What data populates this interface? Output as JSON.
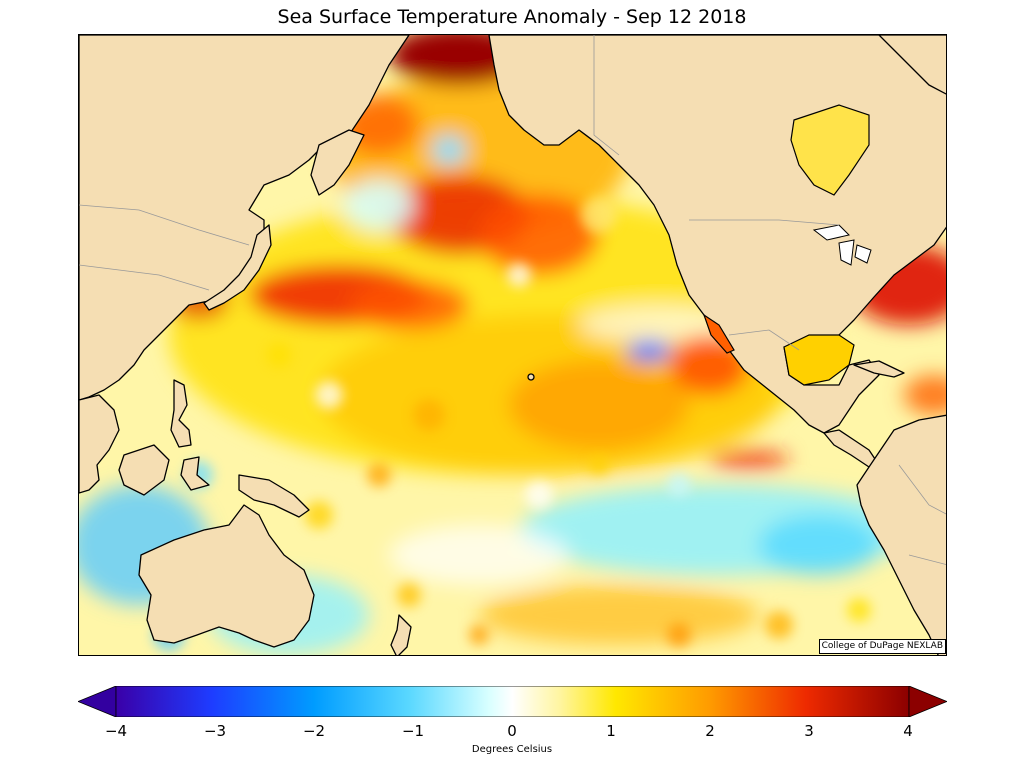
{
  "title": "Sea Surface Temperature Anomaly - Sep 12 2018",
  "credit": "College of DuPage NEXLAB",
  "colorbar": {
    "label": "Degrees Celsius",
    "min": -4,
    "max": 4,
    "ticks": [
      "−4",
      "−3",
      "−2",
      "−1",
      "0",
      "1",
      "2",
      "3",
      "4"
    ],
    "extend": "both"
  },
  "colors": {
    "land": "#f5deb3",
    "coast": "#000000",
    "border": "#999999",
    "warm_strong": "#b30000",
    "warm": "#ff8c00",
    "mild_warm": "#ffe600",
    "neutral": "#ffffff",
    "cool": "#7ff5ff",
    "cold": "#00a0ff",
    "cold_strong": "#3300aa"
  }
}
